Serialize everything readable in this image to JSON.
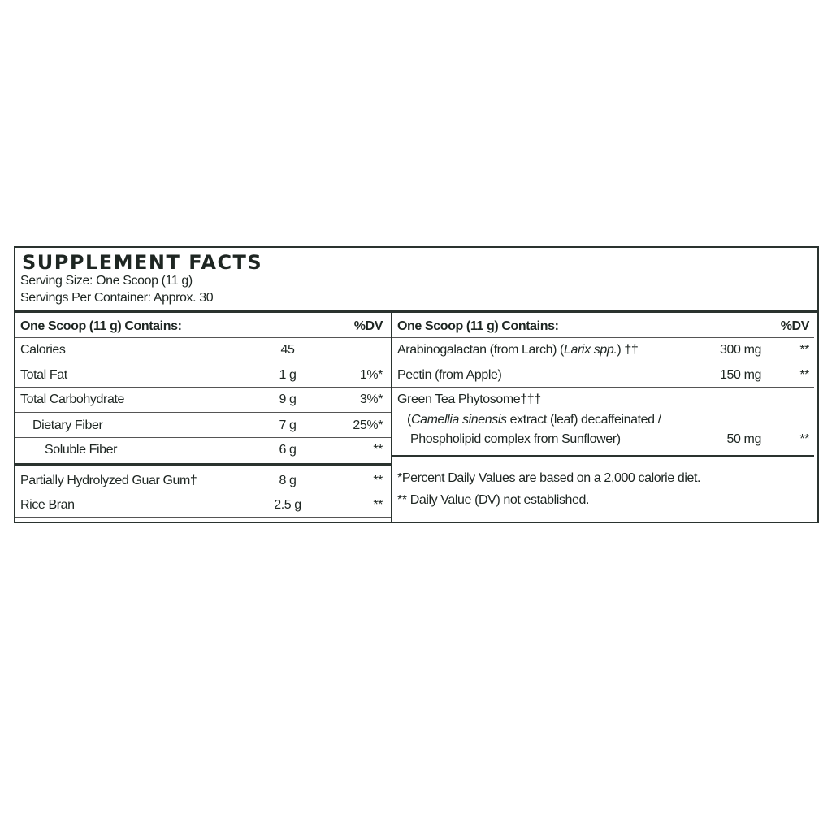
{
  "title": "SUPPLEMENT FACTS",
  "serving_size": "Serving Size: One Scoop (11 g)",
  "servings_per_container": "Servings Per Container: Approx. 30",
  "left": {
    "header": {
      "label": "One Scoop (11 g) Contains:",
      "dv": "%DV"
    },
    "rows": [
      {
        "name": "Calories",
        "amount": "45",
        "dv": ""
      },
      {
        "name": "Total Fat",
        "amount": "1 g",
        "dv": "1%*"
      },
      {
        "name": "Total Carbohydrate",
        "amount": "9 g",
        "dv": "3%*"
      },
      {
        "name": "Dietary Fiber",
        "amount": "7 g",
        "dv": "25%*"
      },
      {
        "name": "Soluble Fiber",
        "amount": "6 g",
        "dv": "**"
      },
      {
        "name": "Partially Hydrolyzed Guar Gum†",
        "amount": "8 g",
        "dv": "**"
      },
      {
        "name": "Rice Bran",
        "amount": "2.5 g",
        "dv": "**"
      }
    ]
  },
  "right": {
    "header": {
      "label": "One Scoop (11 g) Contains:",
      "dv": "%DV"
    },
    "rows": [
      {
        "name_pre": "Arabinogalactan (from Larch) (",
        "name_italic": "Larix spp.",
        "name_post": ") ††",
        "amount": "300 mg",
        "dv": "**"
      },
      {
        "name": "Pectin (from Apple)",
        "amount": "150 mg",
        "dv": "**"
      },
      {
        "name": "Green Tea Phytosome†††",
        "sub_italic": "Camellia sinensis",
        "sub_line1_post": " extract (leaf) decaffeinated /",
        "sub_line2": "Phospholipid complex from Sunflower)",
        "amount": "50 mg",
        "dv": "**"
      }
    ],
    "footnotes": [
      "*Percent Daily Values are based on a 2,000 calorie diet.",
      "** Daily Value (DV) not established."
    ]
  }
}
